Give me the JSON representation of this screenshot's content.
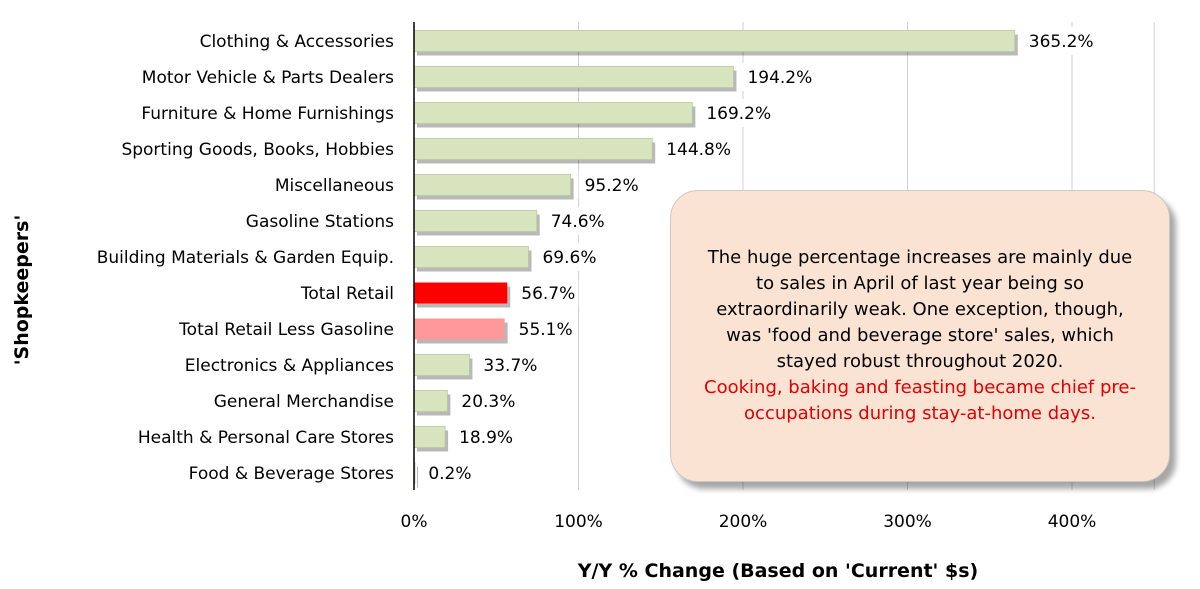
{
  "colors": {
    "default_bar": "#d7e4bd",
    "total_retail": "#ff0000",
    "total_less_gas": "#ff9999",
    "grid": "#d0d0d0",
    "callout_bg": "#fbe3d4",
    "callout_highlight": "#e00000"
  },
  "chart_data": {
    "type": "bar",
    "orientation": "horizontal",
    "title": "",
    "xlabel": "Y/Y % Change (Based on 'Current' $s)",
    "ylabel": "'Shopkeepers'",
    "xlim": [
      0,
      450
    ],
    "xticks": [
      0,
      100,
      200,
      300,
      400
    ],
    "xtick_labels": [
      "0%",
      "100%",
      "200%",
      "300%",
      "400%"
    ],
    "grid": "vertical",
    "categories": [
      "Clothing & Accessories",
      "Motor Vehicle & Parts Dealers",
      "Furniture & Home Furnishings",
      "Sporting Goods, Books, Hobbies",
      "Miscellaneous",
      "Gasoline Stations",
      "Building Materials & Garden Equip.",
      "Total Retail",
      "Total Retail Less Gasoline",
      "Electronics & Appliances",
      "General Merchandise",
      "Health & Personal Care Stores",
      "Food & Beverage Stores"
    ],
    "values": [
      365.2,
      194.2,
      169.2,
      144.8,
      95.2,
      74.6,
      69.6,
      56.7,
      55.1,
      33.7,
      20.3,
      18.9,
      0.2
    ],
    "labels": [
      "365.2%",
      "194.2%",
      "169.2%",
      "144.8%",
      "95.2%",
      "74.6%",
      "69.6%",
      "56.7%",
      "55.1%",
      "33.7%",
      "20.3%",
      "18.9%",
      "0.2%"
    ],
    "bar_colors": [
      "default",
      "default",
      "default",
      "default",
      "default",
      "default",
      "default",
      "total_retail",
      "total_less_gas",
      "default",
      "default",
      "default",
      "default"
    ]
  },
  "callout": {
    "text_black": "The huge percentage increases are mainly due to sales in April of last year being so extraordinarily weak. One exception, though, was 'food and beverage store' sales, which stayed robust throughout 2020.",
    "text_red": "Cooking, baking and feasting became chief pre-occupations during stay-at-home days."
  }
}
